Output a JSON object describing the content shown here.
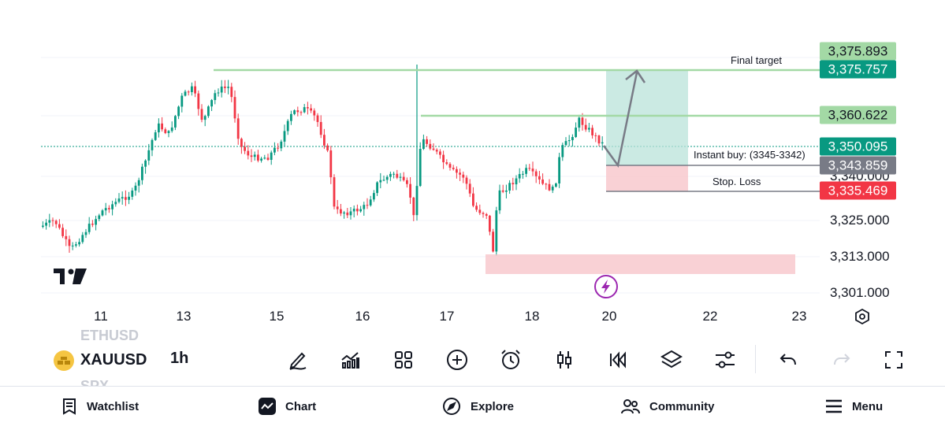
{
  "chart": {
    "price_levels": [
      {
        "label": "3,340.000",
        "value": 3340
      },
      {
        "label": "3,325.000",
        "value": 3325
      },
      {
        "label": "3,313.000",
        "value": 3313
      },
      {
        "label": "3,301.000",
        "value": 3301
      }
    ],
    "dates": [
      "11",
      "13",
      "15",
      "16",
      "17",
      "18",
      "20",
      "22",
      "23"
    ],
    "badges": {
      "final_top": {
        "label": "3,375.893",
        "color": "#a3d9a5",
        "text_color": "#131722"
      },
      "final": {
        "label": "3,375.757",
        "color": "#089981",
        "text_color": "#ffffff"
      },
      "target2": {
        "label": "3,360.622",
        "color": "#a3d9a5",
        "text_color": "#131722"
      },
      "current": {
        "label": "3,350.095",
        "color": "#089981",
        "text_color": "#ffffff"
      },
      "entry": {
        "label": "3,343.859",
        "color": "#787b86",
        "text_color": "#ffffff"
      },
      "stop": {
        "label": "3,335.469",
        "color": "#f23645",
        "text_color": "#ffffff"
      }
    },
    "annotations": {
      "final_target": "Final target",
      "instant_buy": "Instant buy:  (3345-3342)",
      "stop_loss": "Stop. Loss"
    },
    "colors": {
      "up": "#089981",
      "down": "#f23645",
      "level_line": "#a3d9a5"
    }
  },
  "toolbar": {
    "symbol": "XAUUSD",
    "symbol_above": "ETHUSD",
    "symbol_below": "SPX",
    "interval": "1h",
    "icons": [
      "draw-icon",
      "indicators-icon",
      "layout-grid-icon",
      "add-icon",
      "alert-icon",
      "candle-type-icon",
      "replay-icon",
      "layers-icon",
      "settings-sliders-icon",
      "undo-icon",
      "redo-icon",
      "fullscreen-icon"
    ]
  },
  "nav": {
    "watchlist": "Watchlist",
    "chart": "Chart",
    "explore": "Explore",
    "community": "Community",
    "menu": "Menu"
  }
}
